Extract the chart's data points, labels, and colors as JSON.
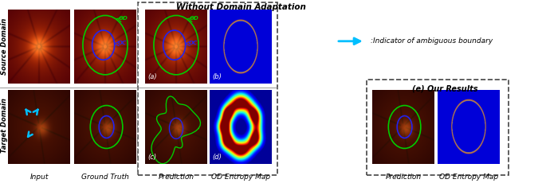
{
  "title_main": "Without Domain Adaptation",
  "legend_text": ":Indicator of ambiguous boundary",
  "legend_arrow_color": "#00BFFF",
  "our_results_label": "(e) Our Results",
  "label_a": "(a)",
  "label_b": "(b)",
  "label_c": "(c)",
  "label_d": "(d)",
  "xlabel_input": "Input",
  "xlabel_gt": "Ground Truth",
  "xlabel_pred": "Prediction",
  "xlabel_entropy": "OD Entropy Map",
  "xlabel_pred2": "Prediction",
  "xlabel_entropy2": "OD Entropy Map",
  "ylabel_source": "Source Domain",
  "ylabel_target": "Target Domain",
  "text_OD": "OD",
  "text_OC": "OC",
  "bg_color": "#ffffff",
  "green_circle": "#00cc00",
  "blue_circle": "#2222ee",
  "cyan_arrow": "#00BFFF",
  "border_dash_color": "#555555"
}
